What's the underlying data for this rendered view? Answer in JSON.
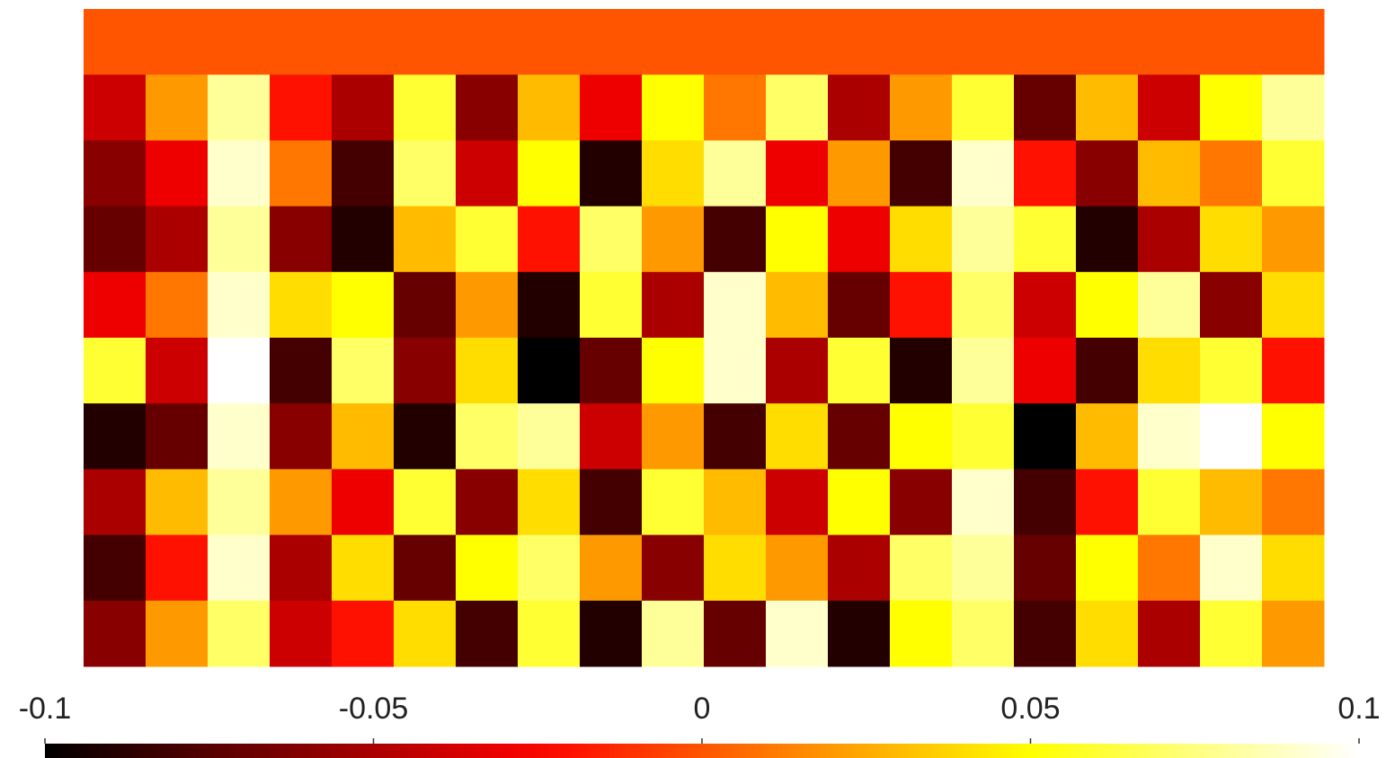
{
  "chart_data": {
    "type": "heatmap",
    "colormap": "hot",
    "clim": [
      -0.1,
      0.1
    ],
    "colorbar_ticks": [
      -0.1,
      -0.05,
      0,
      0.05,
      0.1
    ],
    "values": [
      [
        0,
        0,
        0,
        0,
        0,
        0,
        0,
        0,
        0,
        0,
        0,
        0,
        0,
        0,
        0,
        0,
        0,
        0,
        0,
        0
      ],
      [
        -0.04,
        0.02,
        0.08,
        -0.02,
        -0.05,
        0.06,
        -0.06,
        0.03,
        -0.03,
        0.05,
        0.01,
        0.07,
        -0.05,
        0.02,
        0.06,
        -0.07,
        0.03,
        -0.04,
        0.05,
        0.08
      ],
      [
        -0.06,
        -0.03,
        0.09,
        0.01,
        -0.08,
        0.07,
        -0.04,
        0.05,
        -0.09,
        0.04,
        0.08,
        -0.03,
        0.02,
        -0.08,
        0.09,
        -0.02,
        -0.06,
        0.03,
        0.01,
        0.06
      ],
      [
        -0.07,
        -0.05,
        0.08,
        -0.06,
        -0.09,
        0.03,
        0.06,
        -0.02,
        0.07,
        0.02,
        -0.08,
        0.05,
        -0.03,
        0.04,
        0.08,
        0.06,
        -0.09,
        -0.05,
        0.04,
        0.02
      ],
      [
        -0.03,
        0.01,
        0.09,
        0.04,
        0.05,
        -0.07,
        0.02,
        -0.09,
        0.06,
        -0.05,
        0.09,
        0.03,
        -0.07,
        -0.02,
        0.07,
        -0.04,
        0.05,
        0.08,
        -0.06,
        0.04
      ],
      [
        0.06,
        -0.04,
        0.1,
        -0.08,
        0.07,
        -0.06,
        0.04,
        -0.1,
        -0.07,
        0.05,
        0.09,
        -0.05,
        0.06,
        -0.09,
        0.08,
        -0.03,
        -0.08,
        0.04,
        0.06,
        -0.02
      ],
      [
        -0.09,
        -0.07,
        0.09,
        -0.06,
        0.03,
        -0.09,
        0.07,
        0.08,
        -0.04,
        0.02,
        -0.08,
        0.04,
        -0.07,
        0.05,
        0.06,
        -0.1,
        0.03,
        0.09,
        0.1,
        0.05
      ],
      [
        -0.05,
        0.03,
        0.08,
        0.02,
        -0.03,
        0.06,
        -0.06,
        0.04,
        -0.08,
        0.06,
        0.03,
        -0.04,
        0.05,
        -0.06,
        0.09,
        -0.08,
        -0.02,
        0.06,
        0.03,
        0.01
      ],
      [
        -0.08,
        -0.02,
        0.09,
        -0.05,
        0.04,
        -0.07,
        0.05,
        0.07,
        0.02,
        -0.06,
        0.04,
        0.02,
        -0.05,
        0.07,
        0.08,
        -0.07,
        0.05,
        0.01,
        0.09,
        0.04
      ],
      [
        -0.06,
        0.02,
        0.07,
        -0.04,
        -0.02,
        0.04,
        -0.08,
        0.06,
        -0.09,
        0.08,
        -0.07,
        0.09,
        -0.09,
        0.05,
        0.07,
        -0.08,
        0.04,
        -0.05,
        0.06,
        0.02
      ]
    ]
  }
}
